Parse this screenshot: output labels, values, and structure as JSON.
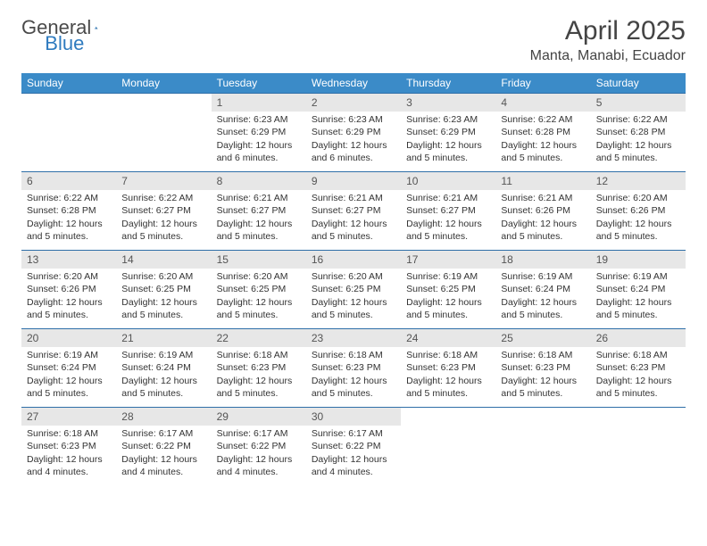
{
  "brand": {
    "part1": "General",
    "part2": "Blue"
  },
  "title": "April 2025",
  "location": "Manta, Manabi, Ecuador",
  "header_bg": "#3b8bc8",
  "header_fg": "#ffffff",
  "daynum_bg": "#e7e7e7",
  "rule_color": "#2f6fa8",
  "weekdays": [
    "Sunday",
    "Monday",
    "Tuesday",
    "Wednesday",
    "Thursday",
    "Friday",
    "Saturday"
  ],
  "weeks": [
    [
      null,
      null,
      {
        "n": "1",
        "sr": "6:23 AM",
        "ss": "6:29 PM",
        "dl": "12 hours and 6 minutes."
      },
      {
        "n": "2",
        "sr": "6:23 AM",
        "ss": "6:29 PM",
        "dl": "12 hours and 6 minutes."
      },
      {
        "n": "3",
        "sr": "6:23 AM",
        "ss": "6:29 PM",
        "dl": "12 hours and 5 minutes."
      },
      {
        "n": "4",
        "sr": "6:22 AM",
        "ss": "6:28 PM",
        "dl": "12 hours and 5 minutes."
      },
      {
        "n": "5",
        "sr": "6:22 AM",
        "ss": "6:28 PM",
        "dl": "12 hours and 5 minutes."
      }
    ],
    [
      {
        "n": "6",
        "sr": "6:22 AM",
        "ss": "6:28 PM",
        "dl": "12 hours and 5 minutes."
      },
      {
        "n": "7",
        "sr": "6:22 AM",
        "ss": "6:27 PM",
        "dl": "12 hours and 5 minutes."
      },
      {
        "n": "8",
        "sr": "6:21 AM",
        "ss": "6:27 PM",
        "dl": "12 hours and 5 minutes."
      },
      {
        "n": "9",
        "sr": "6:21 AM",
        "ss": "6:27 PM",
        "dl": "12 hours and 5 minutes."
      },
      {
        "n": "10",
        "sr": "6:21 AM",
        "ss": "6:27 PM",
        "dl": "12 hours and 5 minutes."
      },
      {
        "n": "11",
        "sr": "6:21 AM",
        "ss": "6:26 PM",
        "dl": "12 hours and 5 minutes."
      },
      {
        "n": "12",
        "sr": "6:20 AM",
        "ss": "6:26 PM",
        "dl": "12 hours and 5 minutes."
      }
    ],
    [
      {
        "n": "13",
        "sr": "6:20 AM",
        "ss": "6:26 PM",
        "dl": "12 hours and 5 minutes."
      },
      {
        "n": "14",
        "sr": "6:20 AM",
        "ss": "6:25 PM",
        "dl": "12 hours and 5 minutes."
      },
      {
        "n": "15",
        "sr": "6:20 AM",
        "ss": "6:25 PM",
        "dl": "12 hours and 5 minutes."
      },
      {
        "n": "16",
        "sr": "6:20 AM",
        "ss": "6:25 PM",
        "dl": "12 hours and 5 minutes."
      },
      {
        "n": "17",
        "sr": "6:19 AM",
        "ss": "6:25 PM",
        "dl": "12 hours and 5 minutes."
      },
      {
        "n": "18",
        "sr": "6:19 AM",
        "ss": "6:24 PM",
        "dl": "12 hours and 5 minutes."
      },
      {
        "n": "19",
        "sr": "6:19 AM",
        "ss": "6:24 PM",
        "dl": "12 hours and 5 minutes."
      }
    ],
    [
      {
        "n": "20",
        "sr": "6:19 AM",
        "ss": "6:24 PM",
        "dl": "12 hours and 5 minutes."
      },
      {
        "n": "21",
        "sr": "6:19 AM",
        "ss": "6:24 PM",
        "dl": "12 hours and 5 minutes."
      },
      {
        "n": "22",
        "sr": "6:18 AM",
        "ss": "6:23 PM",
        "dl": "12 hours and 5 minutes."
      },
      {
        "n": "23",
        "sr": "6:18 AM",
        "ss": "6:23 PM",
        "dl": "12 hours and 5 minutes."
      },
      {
        "n": "24",
        "sr": "6:18 AM",
        "ss": "6:23 PM",
        "dl": "12 hours and 5 minutes."
      },
      {
        "n": "25",
        "sr": "6:18 AM",
        "ss": "6:23 PM",
        "dl": "12 hours and 5 minutes."
      },
      {
        "n": "26",
        "sr": "6:18 AM",
        "ss": "6:23 PM",
        "dl": "12 hours and 5 minutes."
      }
    ],
    [
      {
        "n": "27",
        "sr": "6:18 AM",
        "ss": "6:23 PM",
        "dl": "12 hours and 4 minutes."
      },
      {
        "n": "28",
        "sr": "6:17 AM",
        "ss": "6:22 PM",
        "dl": "12 hours and 4 minutes."
      },
      {
        "n": "29",
        "sr": "6:17 AM",
        "ss": "6:22 PM",
        "dl": "12 hours and 4 minutes."
      },
      {
        "n": "30",
        "sr": "6:17 AM",
        "ss": "6:22 PM",
        "dl": "12 hours and 4 minutes."
      },
      null,
      null,
      null
    ]
  ],
  "labels": {
    "sunrise": "Sunrise: ",
    "sunset": "Sunset: ",
    "daylight": "Daylight: "
  }
}
